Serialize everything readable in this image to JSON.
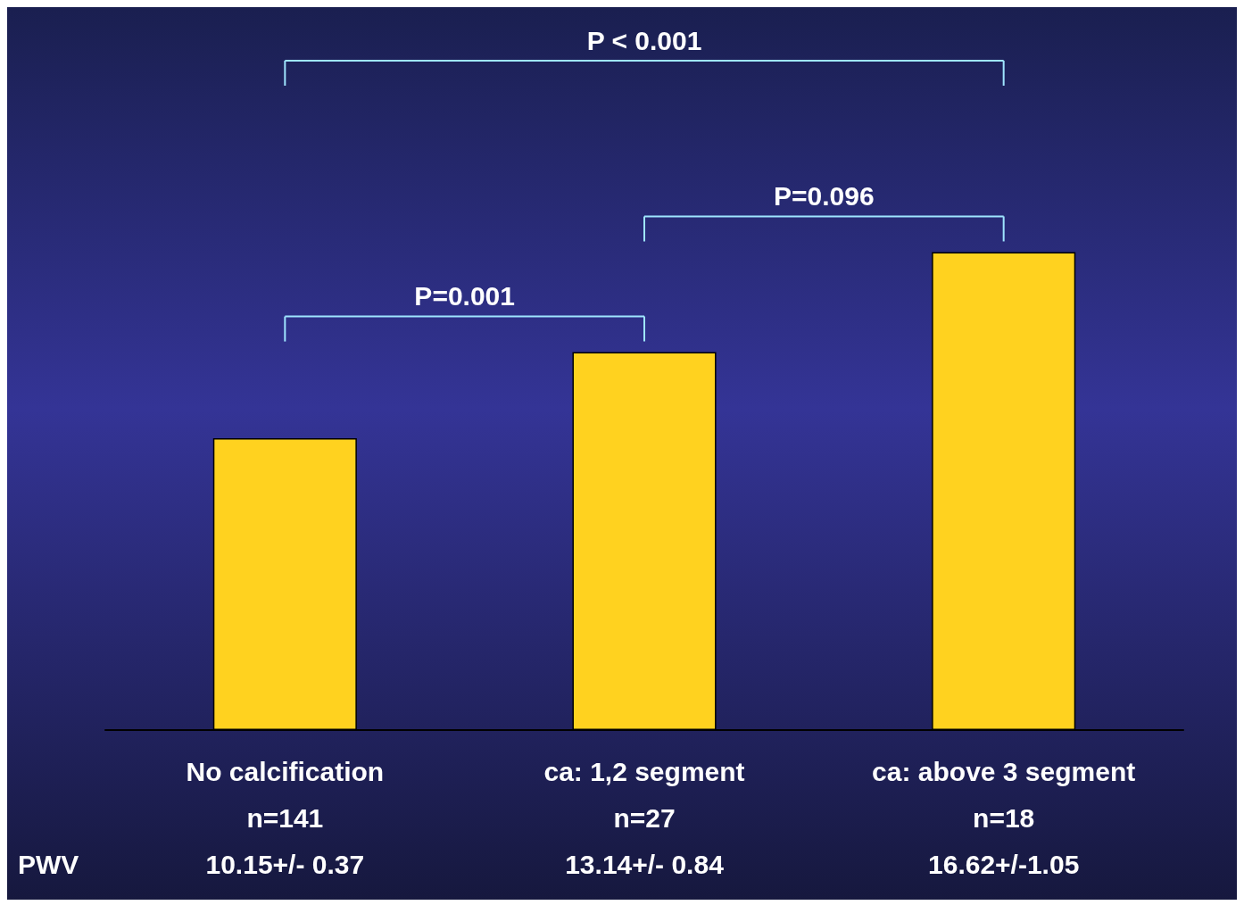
{
  "chart_data": {
    "type": "bar",
    "categories": [
      "No calcification\nn=141",
      "ca: 1,2 segment\nn=27",
      "ca: above 3 segment\nn=18"
    ],
    "values": [
      10.15,
      13.14,
      16.62
    ],
    "value_labels": [
      "10.15+/- 0.37",
      "13.14+/- 0.84",
      "16.62+/-1.05"
    ],
    "color": "#ffd21f",
    "ylabel": "PWV",
    "tick_labels": "x",
    "annotations": [
      "P < 0.001",
      "P=0.001",
      "P=0.096"
    ]
  }
}
